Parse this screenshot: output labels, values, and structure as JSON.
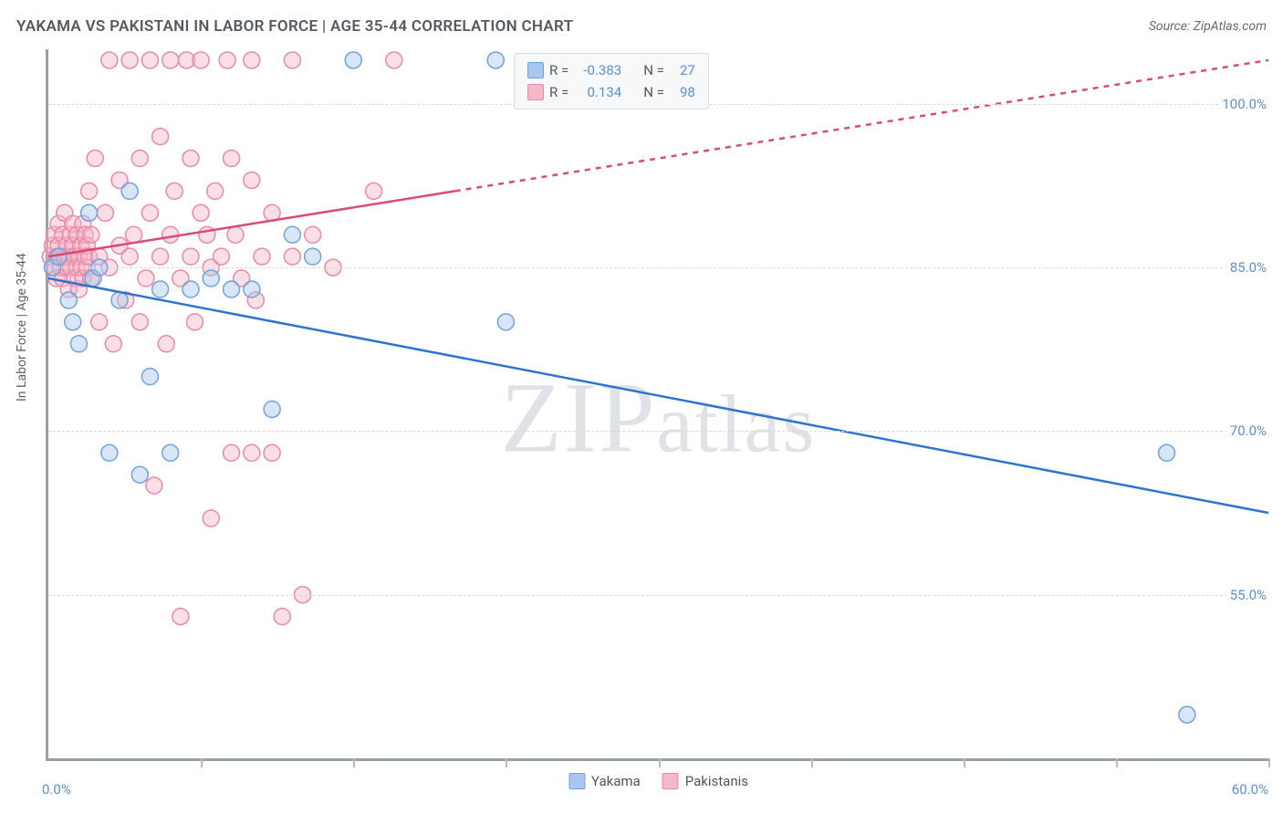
{
  "header": {
    "title": "YAKAMA VS PAKISTANI IN LABOR FORCE | AGE 35-44 CORRELATION CHART",
    "source_prefix": "Source: ",
    "source": "ZipAtlas.com"
  },
  "watermark": "ZIPatlas",
  "chart": {
    "type": "scatter",
    "y_axis_title": "In Labor Force | Age 35-44",
    "xlim": [
      0,
      60
    ],
    "ylim": [
      40,
      105
    ],
    "x_min_label": "0.0%",
    "x_max_label": "60.0%",
    "y_ticks": [
      55,
      70,
      85,
      100
    ],
    "y_tick_labels": [
      "55.0%",
      "70.0%",
      "85.0%",
      "100.0%"
    ],
    "x_tick_positions": [
      7.5,
      15,
      22.5,
      30,
      37.5,
      45,
      52.5,
      60
    ],
    "grid_color": "#d7dadd",
    "axis_color": "#9aa0a8",
    "background_color": "#ffffff",
    "marker_radius": 9,
    "marker_opacity": 0.45,
    "line_width": 2.5,
    "series": [
      {
        "name": "Yakama",
        "color_fill": "#a9c7ee",
        "color_stroke": "#6fa3de",
        "line_color": "#2f73d0",
        "R": "-0.383",
        "N": "27",
        "trend": {
          "x1": 0,
          "y1": 84.0,
          "x2": 60,
          "y2": 62.5,
          "dash_from_x": null
        },
        "points": [
          [
            0.2,
            85
          ],
          [
            0.5,
            86
          ],
          [
            1.0,
            82
          ],
          [
            1.2,
            80
          ],
          [
            1.5,
            78
          ],
          [
            2.0,
            90
          ],
          [
            2.2,
            84
          ],
          [
            2.5,
            85
          ],
          [
            3.0,
            68
          ],
          [
            3.5,
            82
          ],
          [
            4.0,
            92
          ],
          [
            4.5,
            66
          ],
          [
            5.0,
            75
          ],
          [
            5.5,
            83
          ],
          [
            6.0,
            68
          ],
          [
            7.0,
            83
          ],
          [
            8.0,
            84
          ],
          [
            9.0,
            83
          ],
          [
            10.0,
            83
          ],
          [
            11.0,
            72
          ],
          [
            12.0,
            88
          ],
          [
            13.0,
            86
          ],
          [
            15.0,
            104
          ],
          [
            22.0,
            104
          ],
          [
            22.5,
            80
          ],
          [
            55.0,
            68
          ],
          [
            56.0,
            44
          ]
        ]
      },
      {
        "name": "Pakistanis",
        "color_fill": "#f3b9c9",
        "color_stroke": "#e98aa6",
        "line_color": "#d94b78",
        "R": "0.134",
        "N": "98",
        "trend": {
          "x1": 0,
          "y1": 86.0,
          "x2": 60,
          "y2": 104.0,
          "dash_from_x": 20
        },
        "points": [
          [
            0.1,
            86
          ],
          [
            0.2,
            87
          ],
          [
            0.3,
            85
          ],
          [
            0.3,
            88
          ],
          [
            0.4,
            86
          ],
          [
            0.4,
            84
          ],
          [
            0.5,
            87
          ],
          [
            0.5,
            89
          ],
          [
            0.6,
            85
          ],
          [
            0.6,
            86
          ],
          [
            0.7,
            88
          ],
          [
            0.7,
            84
          ],
          [
            0.8,
            86
          ],
          [
            0.8,
            90
          ],
          [
            0.9,
            85
          ],
          [
            0.9,
            87
          ],
          [
            1.0,
            86
          ],
          [
            1.0,
            83
          ],
          [
            1.1,
            88
          ],
          [
            1.1,
            85
          ],
          [
            1.2,
            87
          ],
          [
            1.2,
            89
          ],
          [
            1.3,
            84
          ],
          [
            1.3,
            86
          ],
          [
            1.4,
            85
          ],
          [
            1.4,
            88
          ],
          [
            1.5,
            86
          ],
          [
            1.5,
            83
          ],
          [
            1.6,
            87
          ],
          [
            1.6,
            85
          ],
          [
            1.7,
            89
          ],
          [
            1.7,
            84
          ],
          [
            1.8,
            86
          ],
          [
            1.8,
            88
          ],
          [
            1.9,
            85
          ],
          [
            1.9,
            87
          ],
          [
            2.0,
            86
          ],
          [
            2.0,
            92
          ],
          [
            2.1,
            84
          ],
          [
            2.1,
            88
          ],
          [
            2.3,
            95
          ],
          [
            2.5,
            86
          ],
          [
            2.5,
            80
          ],
          [
            2.8,
            90
          ],
          [
            3.0,
            85
          ],
          [
            3.0,
            104
          ],
          [
            3.2,
            78
          ],
          [
            3.5,
            87
          ],
          [
            3.5,
            93
          ],
          [
            3.8,
            82
          ],
          [
            4.0,
            86
          ],
          [
            4.0,
            104
          ],
          [
            4.2,
            88
          ],
          [
            4.5,
            80
          ],
          [
            4.5,
            95
          ],
          [
            4.8,
            84
          ],
          [
            5.0,
            90
          ],
          [
            5.0,
            104
          ],
          [
            5.2,
            65
          ],
          [
            5.5,
            86
          ],
          [
            5.5,
            97
          ],
          [
            5.8,
            78
          ],
          [
            6.0,
            88
          ],
          [
            6.0,
            104
          ],
          [
            6.2,
            92
          ],
          [
            6.5,
            84
          ],
          [
            6.5,
            53
          ],
          [
            6.8,
            104
          ],
          [
            7.0,
            86
          ],
          [
            7.0,
            95
          ],
          [
            7.2,
            80
          ],
          [
            7.5,
            90
          ],
          [
            7.5,
            104
          ],
          [
            7.8,
            88
          ],
          [
            8.0,
            85
          ],
          [
            8.0,
            62
          ],
          [
            8.2,
            92
          ],
          [
            8.5,
            86
          ],
          [
            8.8,
            104
          ],
          [
            9.0,
            95
          ],
          [
            9.0,
            68
          ],
          [
            9.2,
            88
          ],
          [
            9.5,
            84
          ],
          [
            10.0,
            93
          ],
          [
            10.0,
            68
          ],
          [
            10.0,
            104
          ],
          [
            10.2,
            82
          ],
          [
            10.5,
            86
          ],
          [
            11.0,
            90
          ],
          [
            11.0,
            68
          ],
          [
            11.5,
            53
          ],
          [
            12.0,
            104
          ],
          [
            12.0,
            86
          ],
          [
            12.5,
            55
          ],
          [
            13.0,
            88
          ],
          [
            14.0,
            85
          ],
          [
            16.0,
            92
          ],
          [
            17.0,
            104
          ]
        ]
      }
    ],
    "legend": {
      "R_label": "R =",
      "N_label": "N ="
    }
  }
}
